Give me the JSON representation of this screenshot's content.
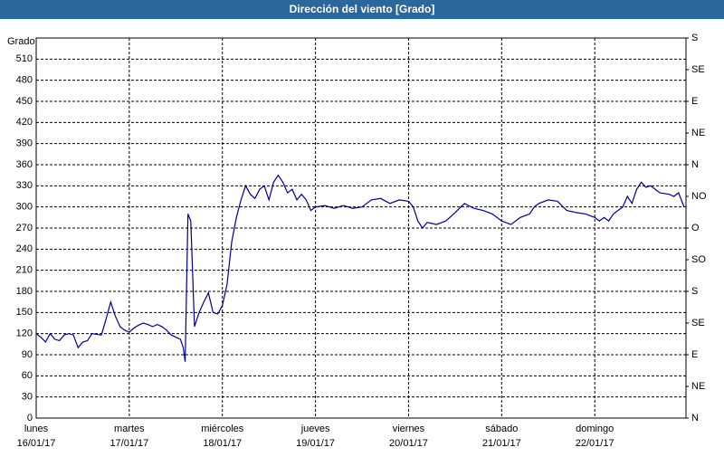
{
  "chart_data": {
    "type": "line",
    "title": "Dirección del viento [Grado]",
    "y_label": "Grado",
    "xlim": [
      0,
      6.98
    ],
    "xticks": [
      {
        "value": 0,
        "label": "lunes"
      },
      {
        "value": 1,
        "label": "martes"
      },
      {
        "value": 2,
        "label": "miércoles"
      },
      {
        "value": 3,
        "label": "jueves"
      },
      {
        "value": 4,
        "label": "viernes"
      },
      {
        "value": 5,
        "label": "sábado"
      },
      {
        "value": 6,
        "label": "domingo"
      }
    ],
    "xtick_dates": [
      "16/01/17",
      "17/01/17",
      "18/01/17",
      "19/01/17",
      "20/01/17",
      "21/01/17",
      "22/01/17"
    ],
    "ylim": [
      0,
      540
    ],
    "yticks": [
      0,
      30,
      60,
      90,
      120,
      150,
      180,
      210,
      240,
      270,
      300,
      330,
      360,
      390,
      420,
      450,
      480,
      510
    ],
    "y2lim": [
      0,
      540
    ],
    "y2ticks": [
      {
        "value": 0,
        "label": "N"
      },
      {
        "value": 45,
        "label": "NE"
      },
      {
        "value": 90,
        "label": "E"
      },
      {
        "value": 135,
        "label": "SE"
      },
      {
        "value": 180,
        "label": "S"
      },
      {
        "value": 225,
        "label": "SO"
      },
      {
        "value": 270,
        "label": "O"
      },
      {
        "value": 315,
        "label": "NO"
      },
      {
        "value": 360,
        "label": "N"
      },
      {
        "value": 405,
        "label": "NE"
      },
      {
        "value": 450,
        "label": "E"
      },
      {
        "value": 495,
        "label": "SE"
      },
      {
        "value": 540,
        "label": "S"
      }
    ],
    "grid": true,
    "series": [
      {
        "color": "#00008b",
        "x": [
          0,
          0.05,
          0.1,
          0.15,
          0.2,
          0.25,
          0.3,
          0.35,
          0.4,
          0.45,
          0.5,
          0.55,
          0.6,
          0.7,
          0.75,
          0.8,
          0.85,
          0.9,
          0.95,
          1.0,
          1.05,
          1.1,
          1.15,
          1.2,
          1.25,
          1.3,
          1.35,
          1.4,
          1.45,
          1.5,
          1.55,
          1.58,
          1.6,
          1.63,
          1.66,
          1.7,
          1.75,
          1.8,
          1.85,
          1.9,
          1.95,
          2.0,
          2.05,
          2.1,
          2.15,
          2.2,
          2.25,
          2.3,
          2.35,
          2.4,
          2.45,
          2.5,
          2.55,
          2.6,
          2.65,
          2.7,
          2.75,
          2.8,
          2.85,
          2.9,
          2.95,
          3.0,
          3.1,
          3.2,
          3.3,
          3.4,
          3.5,
          3.6,
          3.7,
          3.8,
          3.9,
          4.0,
          4.05,
          4.1,
          4.15,
          4.2,
          4.3,
          4.4,
          4.5,
          4.6,
          4.7,
          4.8,
          4.9,
          5.0,
          5.1,
          5.2,
          5.3,
          5.35,
          5.4,
          5.5,
          5.6,
          5.7,
          5.8,
          5.9,
          6.0,
          6.05,
          6.1,
          6.15,
          6.2,
          6.3,
          6.35,
          6.4,
          6.45,
          6.5,
          6.55,
          6.6,
          6.7,
          6.8,
          6.85,
          6.9,
          6.96
        ],
        "values": [
          120,
          115,
          108,
          120,
          112,
          110,
          118,
          120,
          118,
          100,
          108,
          110,
          120,
          118,
          140,
          165,
          145,
          130,
          125,
          122,
          128,
          132,
          135,
          133,
          130,
          133,
          130,
          125,
          118,
          115,
          112,
          100,
          80,
          290,
          280,
          130,
          150,
          165,
          178,
          150,
          148,
          160,
          190,
          250,
          285,
          310,
          330,
          318,
          312,
          325,
          330,
          310,
          335,
          345,
          335,
          320,
          325,
          310,
          318,
          310,
          295,
          300,
          302,
          298,
          302,
          298,
          300,
          310,
          312,
          305,
          310,
          308,
          300,
          280,
          270,
          278,
          275,
          280,
          292,
          305,
          298,
          295,
          290,
          280,
          275,
          285,
          290,
          300,
          305,
          310,
          308,
          295,
          292,
          290,
          285,
          280,
          285,
          280,
          290,
          300,
          315,
          305,
          325,
          335,
          328,
          330,
          320,
          318,
          315,
          320,
          300
        ]
      }
    ]
  }
}
